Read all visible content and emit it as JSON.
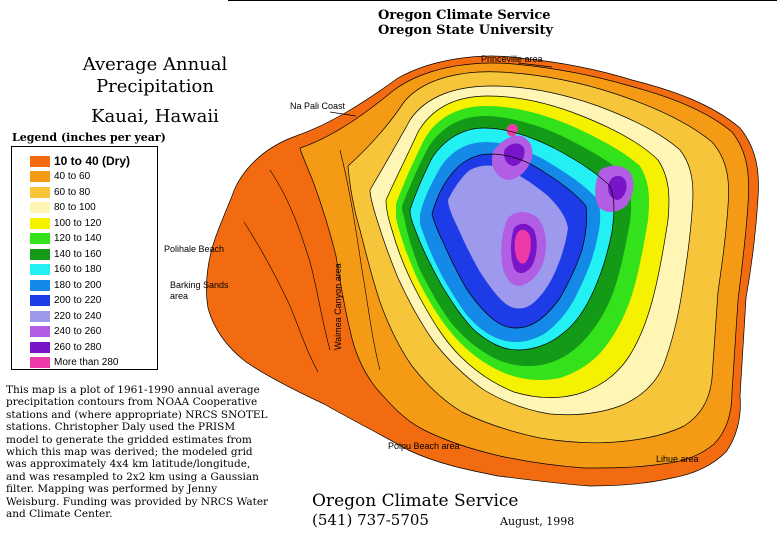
{
  "header": {
    "org": "Oregon Climate Service",
    "university": "Oregon State University"
  },
  "title": {
    "line1": "Average Annual Precipitation",
    "line2": "Kauai, Hawaii"
  },
  "legend": {
    "title": "Legend (inches per year)",
    "items": [
      {
        "label": "10 to 40  (Dry)",
        "color": "#f26b10"
      },
      {
        "label": "40 to 60",
        "color": "#f59a14"
      },
      {
        "label": "60 to 80",
        "color": "#f6c53a"
      },
      {
        "label": "80 to 100",
        "color": "#fff5b4"
      },
      {
        "label": "100 to 120",
        "color": "#f5f100"
      },
      {
        "label": "120 to 140",
        "color": "#34e21c"
      },
      {
        "label": "140 to 160",
        "color": "#139b18"
      },
      {
        "label": "160 to 180",
        "color": "#22f0f2"
      },
      {
        "label": "180 to 200",
        "color": "#1589e8"
      },
      {
        "label": "200 to 220",
        "color": "#1d3be6"
      },
      {
        "label": "220 to 240",
        "color": "#9d9aee"
      },
      {
        "label": "240 to 260",
        "color": "#b25ee4"
      },
      {
        "label": "260 to 280",
        "color": "#7a14c9"
      },
      {
        "label": "More than 280",
        "color": "#ee3aa8"
      }
    ]
  },
  "places": {
    "princeville": "Princeville area",
    "na_pali": "Na Pali Coast",
    "polihale": "Polihale Beach",
    "barking_1": "Barking Sands",
    "barking_2": "area",
    "waimea": "Waimea Canyon area",
    "poipu": "Poipu Beach area",
    "lihue": "Lihue area"
  },
  "description": "This map is a plot of 1961-1990 annual average precipitation contours from NOAA Cooperative stations and (where appropriate) NRCS SNOTEL stations. Christopher Daly used the PRISM model to generate the gridded estimates from which this map was derived; the modeled grid was approximately 4x4 km latitude/longitude, and was resampled to 2x2 km using a Gaussian filter. Mapping was performed by Jenny Weisburg. Funding was provided by NRCS Water and Climate Center.",
  "footer": {
    "name": "Oregon Climate Service",
    "phone": "(541) 737-5705",
    "date": "August, 1998"
  }
}
